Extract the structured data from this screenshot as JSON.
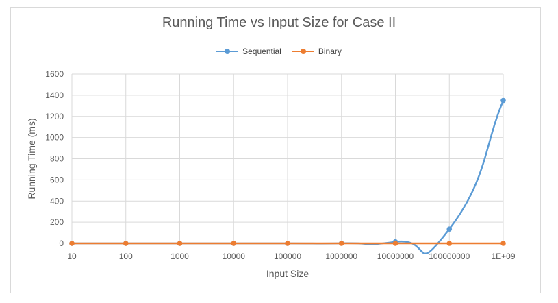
{
  "chart_data": {
    "type": "line",
    "title": "Running Time vs Input Size for Case II",
    "xlabel": "Input Size",
    "ylabel": "Running Time (ms)",
    "categories": [
      "10",
      "100",
      "1000",
      "10000",
      "100000",
      "1000000",
      "10000000",
      "100000000",
      "1E+09"
    ],
    "ylim": [
      0,
      1600
    ],
    "yticks": [
      "0",
      "200",
      "400",
      "600",
      "800",
      "1000",
      "1200",
      "1400",
      "1600"
    ],
    "grid": true,
    "legend_position": "top",
    "series": [
      {
        "name": "Sequential",
        "color": "#5b9bd5",
        "values": [
          0,
          0,
          0,
          0,
          0,
          1,
          15,
          135,
          1350
        ]
      },
      {
        "name": "Binary",
        "color": "#ed7d31",
        "values": [
          0,
          0,
          0,
          0,
          0,
          0,
          0,
          0,
          0
        ]
      }
    ]
  }
}
